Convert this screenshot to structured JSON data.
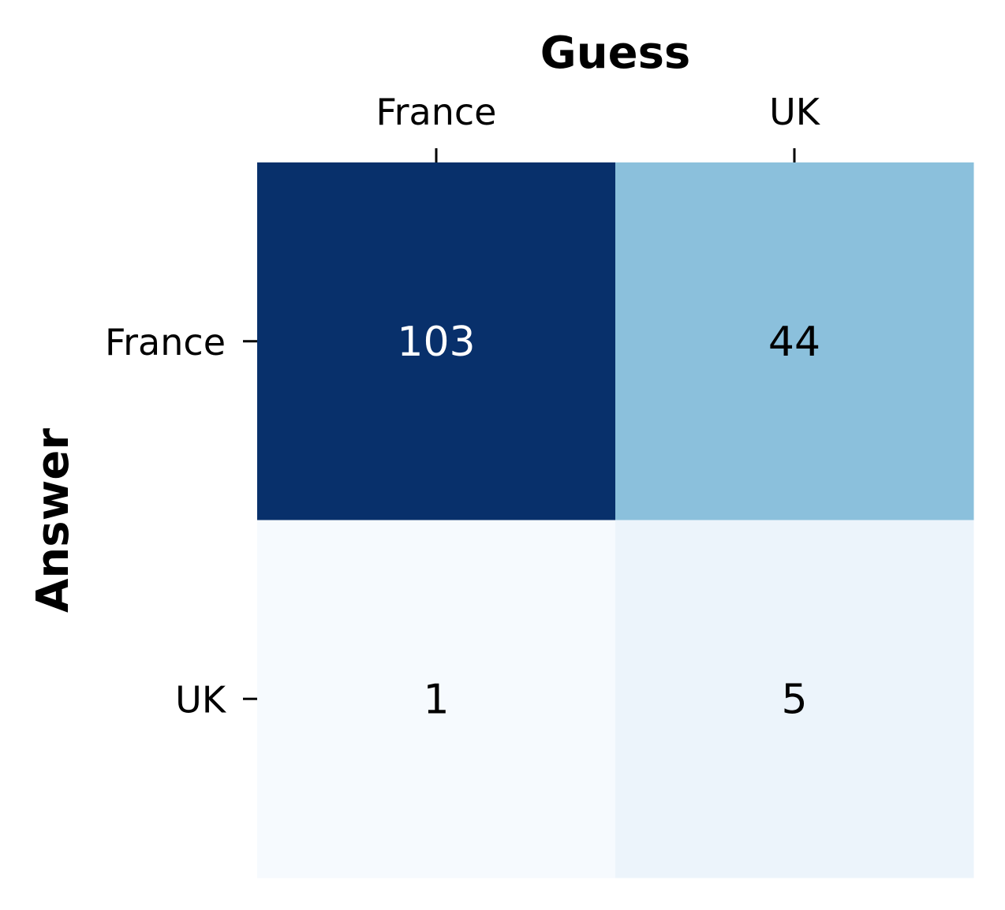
{
  "chart_data": {
    "type": "heatmap",
    "xlabel": "Guess",
    "ylabel": "Answer",
    "x_categories": [
      "France",
      "UK"
    ],
    "y_categories": [
      "France",
      "UK"
    ],
    "x_axis_position": "top",
    "values": [
      [
        103,
        44
      ],
      [
        1,
        5
      ]
    ],
    "colormap": "Blues",
    "colorbar": false,
    "cell_colors": [
      [
        "#08306b",
        "#8bc0dc"
      ],
      [
        "#f6fafe",
        "#ecf4fb"
      ]
    ],
    "cell_text_colors": [
      [
        "#ffffff",
        "#000000"
      ],
      [
        "#000000",
        "#000000"
      ]
    ]
  }
}
